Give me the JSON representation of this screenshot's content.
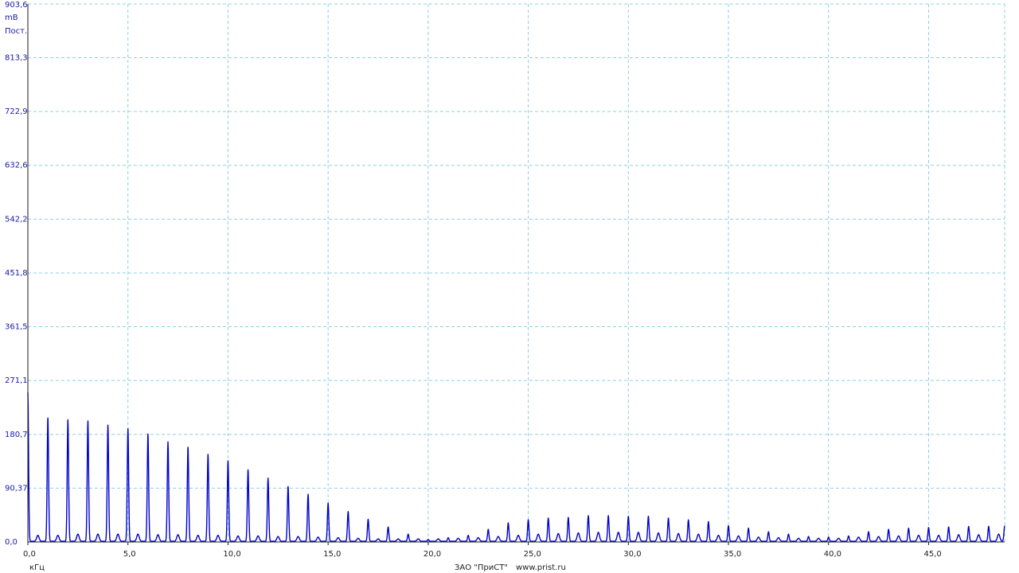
{
  "colors": {
    "background": "#ffffff",
    "grid": "#8fd0dc",
    "axis": "#1a1a1a",
    "trace": "#0000cc",
    "ytick_text": "#1a1aa6",
    "xtick_text": "#222222"
  },
  "footer": {
    "company": "ЗАО \"ПриСТ\"",
    "website": "www.prist.ru"
  },
  "chart_data": {
    "type": "line",
    "ylabel": "mB",
    "ylabel_extra": "Пост.",
    "xlabel": "кГц",
    "xlim": [
      0,
      48.8
    ],
    "ylim": [
      0,
      903.6
    ],
    "grid": true,
    "legend": "none",
    "yticks": [
      "0,0",
      "90,37",
      "180,7",
      "271,1",
      "361,5",
      "451,8",
      "542,2",
      "632,6",
      "722,9",
      "813,3",
      "903,6"
    ],
    "ytick_values": [
      0,
      90.37,
      180.7,
      271.1,
      361.5,
      451.8,
      542.2,
      632.6,
      722.9,
      813.3,
      903.6
    ],
    "xticks": [
      "0,0",
      "5,0",
      "10,0",
      "15,0",
      "20,0",
      "25,0",
      "30,0",
      "35,0",
      "40,0",
      "45,0"
    ],
    "xtick_values": [
      0,
      5,
      10,
      15,
      20,
      25,
      30,
      35,
      40,
      45
    ],
    "series": [
      {
        "harmonics_khz": [
          0,
          1,
          2,
          3,
          4,
          5,
          6,
          7,
          8,
          9,
          10,
          11,
          12,
          13,
          14,
          15,
          16,
          17,
          18,
          19,
          20,
          21,
          22,
          23,
          24,
          25,
          26,
          27,
          28,
          29,
          30,
          31,
          32,
          33,
          34,
          35,
          36,
          37,
          38,
          39,
          40,
          41,
          42,
          43,
          44,
          45,
          46,
          47,
          48,
          48.8
        ],
        "harmonic_amplitudes": [
          250,
          207,
          204,
          202,
          195,
          189,
          180,
          167,
          158,
          146,
          135,
          120,
          106,
          92,
          79,
          64,
          50,
          37,
          24,
          12,
          3,
          6,
          10,
          20,
          31,
          36,
          39,
          40,
          43,
          43,
          42,
          42,
          39,
          36,
          33,
          26,
          22,
          16,
          12,
          8,
          7,
          9,
          16,
          20,
          22,
          23,
          24,
          25,
          25,
          26
        ],
        "interharmonics_khz": [
          0.5,
          1.5,
          2.5,
          3.5,
          4.5,
          5.5,
          6.5,
          7.5,
          8.5,
          9.5,
          10.5,
          11.5,
          12.5,
          13.5,
          14.5,
          15.5,
          16.5,
          17.5,
          18.5,
          19.5,
          20.5,
          21.5,
          22.5,
          23.5,
          24.5,
          25.5,
          26.5,
          27.5,
          28.5,
          29.5,
          30.5,
          31.5,
          32.5,
          33.5,
          34.5,
          35.5,
          36.5,
          37.5,
          38.5,
          39.5,
          40.5,
          41.5,
          42.5,
          43.5,
          44.5,
          45.5,
          46.5,
          47.5,
          48.5
        ],
        "interharmonic_amplitudes": [
          10,
          10,
          12,
          12,
          12,
          12,
          11,
          11,
          10,
          10,
          9,
          9,
          8,
          8,
          7,
          6,
          5,
          4,
          4,
          4,
          4,
          5,
          6,
          8,
          10,
          12,
          13,
          14,
          15,
          15,
          15,
          14,
          13,
          12,
          10,
          9,
          7,
          6,
          5,
          5,
          5,
          7,
          8,
          9,
          10,
          10,
          11,
          11,
          12
        ]
      }
    ]
  }
}
